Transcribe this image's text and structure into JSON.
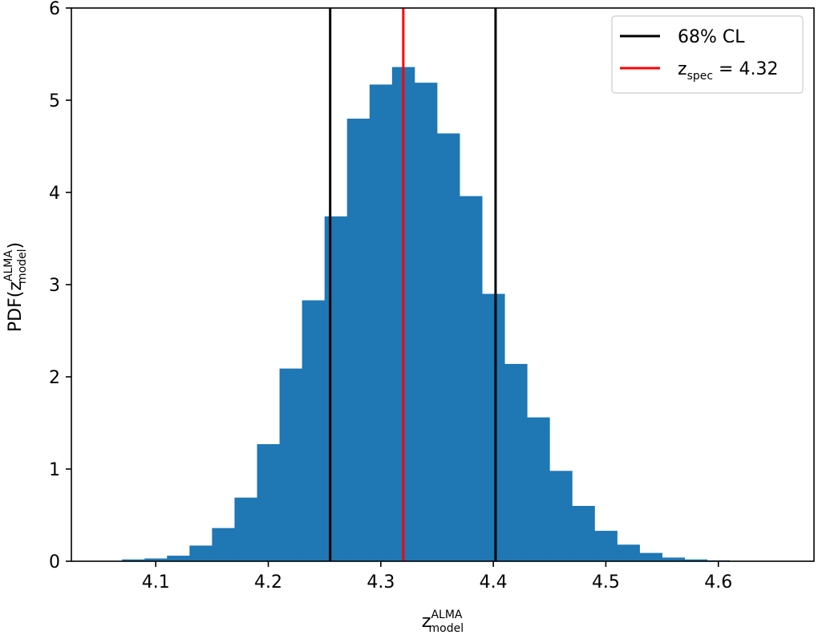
{
  "chart_data": {
    "type": "bar",
    "subtype": "histogram",
    "xlim": [
      4.025,
      4.685
    ],
    "ylim": [
      0,
      6
    ],
    "x_ticks": [
      4.1,
      4.2,
      4.3,
      4.4,
      4.5,
      4.6
    ],
    "x_tick_labels": [
      "4.1",
      "4.2",
      "4.3",
      "4.4",
      "4.5",
      "4.6"
    ],
    "y_ticks": [
      0,
      1,
      2,
      3,
      4,
      5,
      6
    ],
    "y_tick_labels": [
      "0",
      "1",
      "2",
      "3",
      "4",
      "5",
      "6"
    ],
    "xlabel": {
      "base": "z",
      "superscript": "ALMA",
      "subscript": "model"
    },
    "ylabel": {
      "prefix": "PDF(",
      "base": "z",
      "superscript": "ALMA",
      "subscript": "model",
      "suffix": ")"
    },
    "bar_color": "#1f77b4",
    "bin_edges": [
      4.07,
      4.09,
      4.11,
      4.13,
      4.15,
      4.17,
      4.19,
      4.21,
      4.23,
      4.25,
      4.27,
      4.29,
      4.31,
      4.33,
      4.35,
      4.37,
      4.39,
      4.41,
      4.43,
      4.45,
      4.47,
      4.49,
      4.51,
      4.53,
      4.55,
      4.57,
      4.59,
      4.61
    ],
    "values": [
      0.02,
      0.03,
      0.06,
      0.17,
      0.36,
      0.69,
      1.27,
      2.09,
      2.83,
      3.74,
      4.8,
      5.17,
      5.36,
      5.19,
      4.64,
      3.96,
      2.9,
      2.14,
      1.56,
      0.98,
      0.6,
      0.33,
      0.18,
      0.09,
      0.04,
      0.02,
      0.01
    ],
    "vlines": [
      {
        "x": 4.255,
        "color": "#000000",
        "series": "cl"
      },
      {
        "x": 4.402,
        "color": "#000000",
        "series": "cl"
      },
      {
        "x": 4.32,
        "color": "#ff0000",
        "series": "zspec"
      }
    ],
    "legend": {
      "placement": "top-right",
      "entries": [
        {
          "id": "cl",
          "color": "#000000",
          "label": "68% CL"
        },
        {
          "id": "zspec",
          "color": "#ff0000",
          "base": "z",
          "subscript": "spec",
          "rest": " = 4.32"
        }
      ]
    }
  }
}
